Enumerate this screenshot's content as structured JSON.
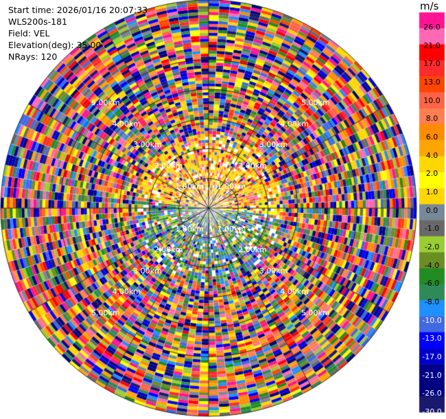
{
  "header": {
    "start_time": "Start time: 2026/01/16 20:07:33",
    "instrument": "WLS200s-181",
    "field": "Field: VEL",
    "elevation": "Elevation(deg): 35.00",
    "nrays": "NRays: 120"
  },
  "chart_data": {
    "type": "heatmap",
    "projection": "polar PPI",
    "field": "VEL",
    "units": "m/s",
    "n_rays": 120,
    "elevation_deg": 35.0,
    "range_rings_km": [
      1,
      2,
      3,
      4,
      5
    ],
    "range_ring_labels": [
      "1.00km",
      "2.00km",
      "3.00km",
      "4.00km",
      "5.00km"
    ],
    "max_range_km": 7.0,
    "colorbar": {
      "min": -30.0,
      "max": 30.0,
      "tick_labels": [
        "26.0",
        "21.0",
        "17.0",
        "13.0",
        "10.0",
        "8.0",
        "6.0",
        "4.0",
        "2.0",
        "1.0",
        "0.0",
        "-1.0",
        "-2.0",
        "-4.0",
        "-6.0",
        "-8.0",
        "-10.0",
        "-13.0",
        "-17.0",
        "-21.0",
        "-26.0",
        "-30.0"
      ],
      "colors": [
        "#ff1493",
        "#ff69b4",
        "#ff0000",
        "#ff2a2a",
        "#ff4500",
        "#ff6347",
        "#ff7f50",
        "#ff8c00",
        "#ffa500",
        "#ffd700",
        "#ffff00",
        "#ffd700",
        "#778899",
        "#696969",
        "#9acd32",
        "#6b8e23",
        "#228b22",
        "#2e8b57",
        "#1e90ff",
        "#4169e1",
        "#0000ff",
        "#0000cd",
        "#00008b",
        "#000080",
        "#191970"
      ]
    }
  }
}
